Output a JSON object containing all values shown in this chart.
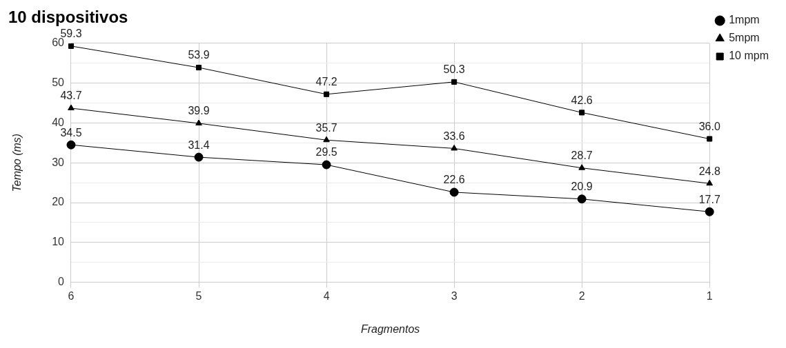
{
  "chart_data": {
    "type": "line",
    "title": "10 dispositivos",
    "xlabel": "Fragmentos",
    "ylabel": "Tempo (ms)",
    "categories": [
      "6",
      "5",
      "4",
      "3",
      "2",
      "1"
    ],
    "series": [
      {
        "name": "1mpm",
        "color": "#000000",
        "marker": "circle",
        "values": [
          34.5,
          31.4,
          29.5,
          22.6,
          20.9,
          17.7
        ],
        "value_labels": [
          "34.5",
          "31.4",
          "29.5",
          "22.6",
          "20.9",
          "17.7"
        ]
      },
      {
        "name": "5mpm",
        "color": "#000000",
        "marker": "triangle",
        "values": [
          43.7,
          39.9,
          35.7,
          33.6,
          28.7,
          24.8
        ],
        "value_labels": [
          "43.7",
          "39.9",
          "35.7",
          "33.6",
          "28.7",
          "24.8"
        ]
      },
      {
        "name": "10 mpm",
        "color": "#000000",
        "marker": "square",
        "values": [
          59.3,
          53.9,
          47.2,
          50.3,
          42.6,
          36.0
        ],
        "value_labels": [
          "59.3",
          "53.9",
          "47.2",
          "50.3",
          "42.6",
          "36.0"
        ]
      }
    ],
    "ylim": [
      0,
      60
    ],
    "yticks": [
      0,
      {
        "value": 5,
        "label": null
      },
      10,
      {
        "value": 15,
        "label": null
      },
      20,
      {
        "value": 25,
        "label": null
      },
      30,
      {
        "value": 35,
        "label": null
      },
      40,
      {
        "value": 45,
        "label": null
      },
      50,
      {
        "value": 55,
        "label": null
      },
      60
    ],
    "grid": true,
    "legend": "top right"
  }
}
